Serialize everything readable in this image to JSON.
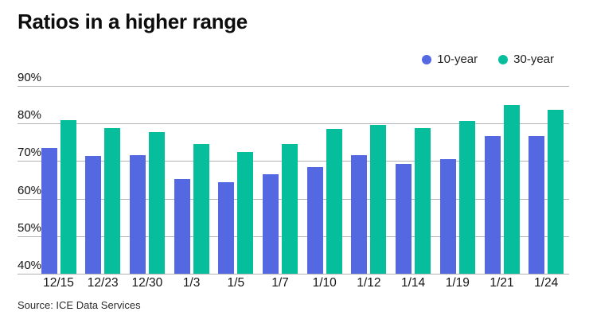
{
  "title": "Ratios in a higher range",
  "source": "Source: ICE Data Services",
  "legend": [
    {
      "label": "10-year",
      "color": "#5468e1"
    },
    {
      "label": "30-year",
      "color": "#06bd9c"
    }
  ],
  "colors": {
    "series_10yr": "#5468e1",
    "series_30yr": "#06bd9c",
    "gridline": "#b1b1b6",
    "text": "#141414",
    "background": "#ffffff"
  },
  "chart_data": {
    "type": "bar",
    "title": "Ratios in a higher range",
    "categories": [
      "12/15",
      "12/23",
      "12/30",
      "1/3",
      "1/5",
      "1/7",
      "1/10",
      "1/12",
      "1/14",
      "1/19",
      "1/21",
      "1/24"
    ],
    "series": [
      {
        "name": "10-year",
        "color": "#5468e1",
        "values": [
          73.5,
          71.4,
          71.6,
          65.2,
          64.3,
          66.4,
          68.4,
          71.5,
          69.3,
          70.5,
          76.6,
          76.6
        ]
      },
      {
        "name": "30-year",
        "color": "#06bd9c",
        "values": [
          80.8,
          78.7,
          77.7,
          74.6,
          72.5,
          74.6,
          78.5,
          79.7,
          78.8,
          80.7,
          84.9,
          83.7
        ]
      }
    ],
    "ylim": [
      40,
      90
    ],
    "yticks": [
      {
        "label": "90%",
        "value": 90
      },
      {
        "label": "80%",
        "value": 80
      },
      {
        "label": "70%",
        "value": 70
      },
      {
        "label": "60%",
        "value": 60
      },
      {
        "label": "50%",
        "value": 50
      },
      {
        "label": "40%",
        "value": 40
      }
    ],
    "xlabel": "",
    "ylabel": "",
    "grid": true,
    "legend_position": "top-right"
  }
}
